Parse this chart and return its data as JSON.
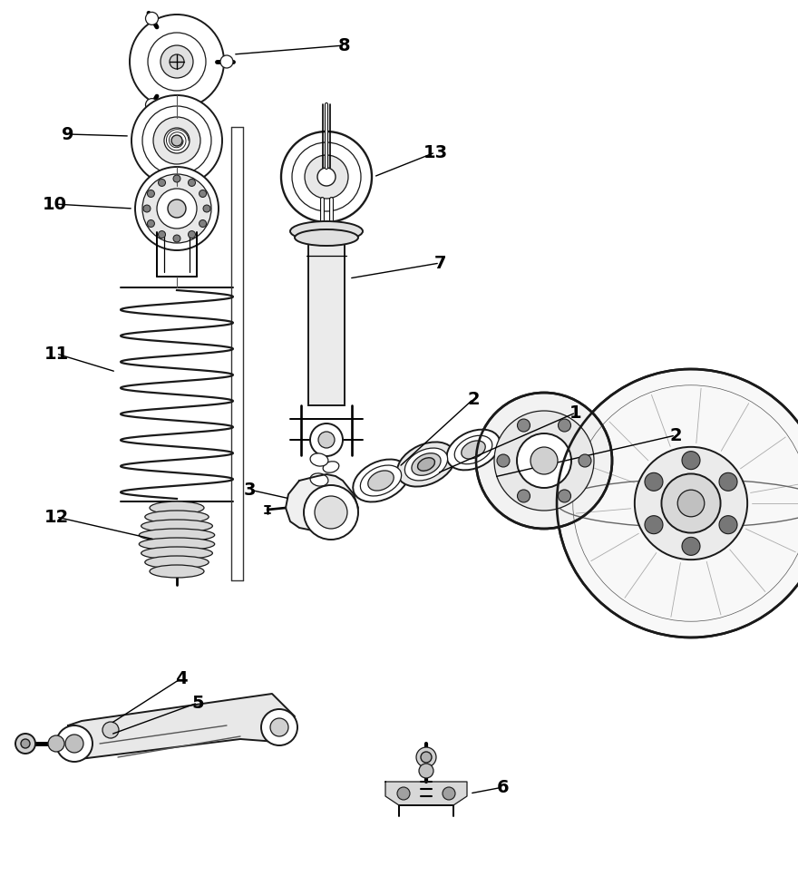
{
  "bg_color": "#ffffff",
  "line_color": "#1a1a1a",
  "fig_width": 8.8,
  "fig_height": 9.66,
  "dpi": 100
}
